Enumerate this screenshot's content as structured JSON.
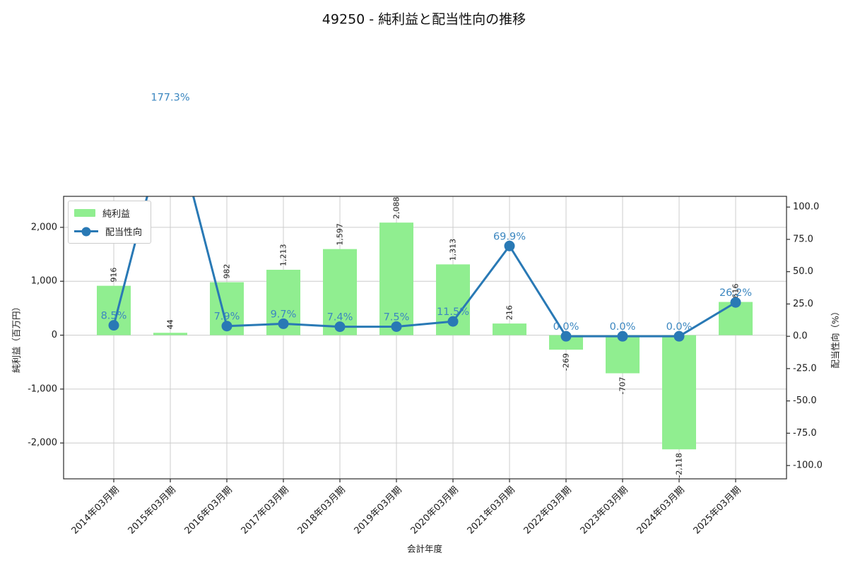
{
  "title": "49250 - 純利益と配当性向の推移",
  "chart_data": {
    "type": "combo",
    "categories": [
      "2014年03月期",
      "2015年03月期",
      "2016年03月期",
      "2017年03月期",
      "2018年03月期",
      "2019年03月期",
      "2020年03月期",
      "2021年03月期",
      "2022年03月期",
      "2023年03月期",
      "2024年03月期",
      "2025年03月期"
    ],
    "series": [
      {
        "name": "純利益",
        "type": "bar",
        "color": "#90ee90",
        "values": [
          916,
          44,
          982,
          1213,
          1597,
          2088,
          1313,
          216,
          -269,
          -707,
          -2118,
          616
        ],
        "value_labels": [
          "916",
          "44",
          "982",
          "1,213",
          "1,597",
          "2,088",
          "1,313",
          "216",
          "-269",
          "-707",
          "-2,118",
          "616"
        ]
      },
      {
        "name": "配当性向",
        "type": "line",
        "color": "#2979b5",
        "label_color": "#3c87c0",
        "values": [
          8.5,
          177.3,
          7.9,
          9.7,
          7.4,
          7.5,
          11.5,
          69.9,
          0.0,
          0.0,
          0.0,
          26.2
        ],
        "value_labels": [
          "8.5%",
          "177.3%",
          "7.9%",
          "9.7%",
          "7.4%",
          "7.5%",
          "11.5%",
          "69.9%",
          "0.0%",
          "0.0%",
          "0.0%",
          "26.2%"
        ]
      }
    ],
    "xlabel": "会計年度",
    "ylabel_left": "純利益（百万円）",
    "ylabel_right": "配当性向（%）",
    "left_axis": {
      "tick_labels": [
        "2,000",
        "1,000",
        "0",
        "-1,000",
        "-2,000"
      ],
      "tick_values": [
        2000,
        1000,
        0,
        -1000,
        -2000
      ],
      "min": -2665,
      "max": 2575
    },
    "right_axis": {
      "tick_labels": [
        "100.0",
        "75.0",
        "50.0",
        "25.0",
        "0.0",
        "-25.0",
        "-50.0",
        "-75.0",
        "-100.0"
      ],
      "tick_values": [
        100,
        75,
        50,
        25,
        0,
        -25,
        -50,
        -75,
        -100
      ],
      "min": -110.3,
      "max": 108.3
    },
    "grid": true,
    "legend_position": "upper-left"
  },
  "colors": {
    "grid": "#cccccc",
    "spine": "#2a2a2a",
    "text": "#1a1a1a",
    "background": "#ffffff"
  }
}
